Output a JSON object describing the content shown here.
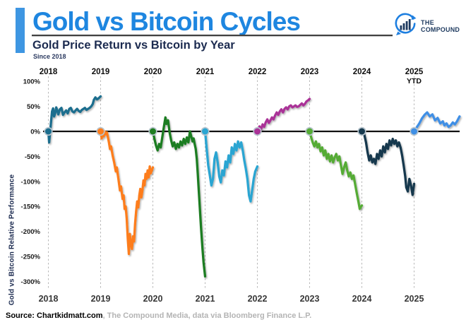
{
  "header": {
    "title": "Gold vs Bitcoin Cycles",
    "subtitle": "Gold Price Return vs Bitcoin by Year",
    "since": "Since 2018",
    "logo": {
      "line1": "THE",
      "line2": "COMPOUND"
    }
  },
  "footer": {
    "source_bold": "Source: Chartkidmatt.com",
    "source_rest": ", The Compound Media, data via Bloomberg Finance L.P."
  },
  "palette": {
    "title_blue": "#1e86e0",
    "accent_bar_blue": "#3e96e2",
    "navy_text": "#1c2b50",
    "zero_line": "#111111",
    "gridline": "#b8b8b8",
    "dot_ring": "#b9c6cf",
    "footer_gray": "#b4b4b4"
  },
  "chart_data": {
    "type": "line",
    "title": "Gold Price Return vs Bitcoin by Year",
    "subtitle": "Since 2018",
    "ylabel": "Gold vs Bitcoin Relative Performance",
    "ylim": [
      -300,
      100
    ],
    "yticks": [
      100,
      50,
      0,
      -50,
      -100,
      -150,
      -200,
      -250,
      -300
    ],
    "ytick_labels": [
      "100%",
      "50%",
      "0%",
      "-50%",
      "-100%",
      "-150%",
      "-200%",
      "-250%",
      "-300%"
    ],
    "x_bottom_labels": [
      "2018",
      "2019",
      "2020",
      "2021",
      "2022",
      "2023",
      "2024",
      "2025"
    ],
    "x_top_labels": [
      {
        "label": "2018",
        "sub": ""
      },
      {
        "label": "2019",
        "sub": ""
      },
      {
        "label": "2020",
        "sub": ""
      },
      {
        "label": "2021",
        "sub": ""
      },
      {
        "label": "2022",
        "sub": ""
      },
      {
        "label": "2023",
        "sub": ""
      },
      {
        "label": "2024",
        "sub": ""
      },
      {
        "label": "2025",
        "sub": "YTD"
      }
    ],
    "grid": "vertical-dashed",
    "legend": "none",
    "series": [
      {
        "name": "2018",
        "color": "#1c6e8e",
        "points": [
          [
            0,
            0
          ],
          [
            0.015,
            -22
          ],
          [
            0.03,
            -5
          ],
          [
            0.05,
            18
          ],
          [
            0.07,
            40
          ],
          [
            0.09,
            46
          ],
          [
            0.11,
            30
          ],
          [
            0.13,
            36
          ],
          [
            0.15,
            48
          ],
          [
            0.17,
            42
          ],
          [
            0.19,
            34
          ],
          [
            0.22,
            44
          ],
          [
            0.25,
            47
          ],
          [
            0.28,
            33
          ],
          [
            0.31,
            38
          ],
          [
            0.34,
            42
          ],
          [
            0.37,
            36
          ],
          [
            0.4,
            45
          ],
          [
            0.43,
            47
          ],
          [
            0.46,
            40
          ],
          [
            0.49,
            38
          ],
          [
            0.52,
            42
          ],
          [
            0.55,
            45
          ],
          [
            0.58,
            41
          ],
          [
            0.61,
            39
          ],
          [
            0.64,
            43
          ],
          [
            0.67,
            45
          ],
          [
            0.7,
            47
          ],
          [
            0.73,
            43
          ],
          [
            0.76,
            45
          ],
          [
            0.79,
            47
          ],
          [
            0.82,
            50
          ],
          [
            0.85,
            55
          ],
          [
            0.87,
            63
          ],
          [
            0.9,
            68
          ],
          [
            0.93,
            64
          ],
          [
            0.96,
            66
          ],
          [
            1,
            70
          ]
        ]
      },
      {
        "name": "2019",
        "color": "#fd7d1d",
        "points": [
          [
            0,
            0
          ],
          [
            0.02,
            -14
          ],
          [
            0.04,
            -4
          ],
          [
            0.06,
            -10
          ],
          [
            0.08,
            0
          ],
          [
            0.1,
            -6
          ],
          [
            0.12,
            -2
          ],
          [
            0.14,
            -12
          ],
          [
            0.16,
            -22
          ],
          [
            0.18,
            -35
          ],
          [
            0.2,
            -30
          ],
          [
            0.23,
            -48
          ],
          [
            0.26,
            -62
          ],
          [
            0.29,
            -80
          ],
          [
            0.31,
            -72
          ],
          [
            0.34,
            -95
          ],
          [
            0.37,
            -118
          ],
          [
            0.39,
            -110
          ],
          [
            0.42,
            -135
          ],
          [
            0.44,
            -128
          ],
          [
            0.46,
            -155
          ],
          [
            0.48,
            -150
          ],
          [
            0.5,
            -175
          ],
          [
            0.52,
            -215
          ],
          [
            0.54,
            -245
          ],
          [
            0.56,
            -205
          ],
          [
            0.58,
            -225
          ],
          [
            0.6,
            -235
          ],
          [
            0.62,
            -210
          ],
          [
            0.64,
            -220
          ],
          [
            0.66,
            -185
          ],
          [
            0.68,
            -160
          ],
          [
            0.7,
            -140
          ],
          [
            0.72,
            -152
          ],
          [
            0.74,
            -128
          ],
          [
            0.76,
            -115
          ],
          [
            0.78,
            -132
          ],
          [
            0.8,
            -118
          ],
          [
            0.82,
            -98
          ],
          [
            0.84,
            -108
          ],
          [
            0.86,
            -85
          ],
          [
            0.88,
            -95
          ],
          [
            0.9,
            -78
          ],
          [
            0.92,
            -92
          ],
          [
            0.94,
            -70
          ],
          [
            0.96,
            -84
          ],
          [
            0.98,
            -78
          ],
          [
            1,
            -72
          ]
        ]
      },
      {
        "name": "2020",
        "color": "#1f7d21",
        "points": [
          [
            0,
            0
          ],
          [
            0.03,
            -15
          ],
          [
            0.06,
            -28
          ],
          [
            0.09,
            -38
          ],
          [
            0.12,
            -25
          ],
          [
            0.15,
            -32
          ],
          [
            0.18,
            -12
          ],
          [
            0.21,
            8
          ],
          [
            0.24,
            28
          ],
          [
            0.26,
            15
          ],
          [
            0.29,
            22
          ],
          [
            0.32,
            -2
          ],
          [
            0.35,
            -18
          ],
          [
            0.38,
            -30
          ],
          [
            0.41,
            -22
          ],
          [
            0.44,
            -35
          ],
          [
            0.47,
            -25
          ],
          [
            0.5,
            -32
          ],
          [
            0.53,
            -20
          ],
          [
            0.56,
            -28
          ],
          [
            0.59,
            -15
          ],
          [
            0.62,
            -25
          ],
          [
            0.65,
            -12
          ],
          [
            0.68,
            -22
          ],
          [
            0.71,
            0
          ],
          [
            0.73,
            -8
          ],
          [
            0.76,
            -20
          ],
          [
            0.78,
            -14
          ],
          [
            0.8,
            -25
          ],
          [
            0.82,
            -35
          ],
          [
            0.84,
            -55
          ],
          [
            0.86,
            -85
          ],
          [
            0.88,
            -120
          ],
          [
            0.9,
            -155
          ],
          [
            0.92,
            -190
          ],
          [
            0.95,
            -235
          ],
          [
            0.97,
            -262
          ],
          [
            1,
            -290
          ]
        ]
      },
      {
        "name": "2021",
        "color": "#2aa5d2",
        "points": [
          [
            0,
            0
          ],
          [
            0.03,
            -35
          ],
          [
            0.06,
            -68
          ],
          [
            0.09,
            -88
          ],
          [
            0.12,
            -108
          ],
          [
            0.15,
            -95
          ],
          [
            0.18,
            -55
          ],
          [
            0.21,
            -42
          ],
          [
            0.24,
            -62
          ],
          [
            0.27,
            -90
          ],
          [
            0.3,
            -102
          ],
          [
            0.33,
            -78
          ],
          [
            0.36,
            -88
          ],
          [
            0.39,
            -60
          ],
          [
            0.42,
            -72
          ],
          [
            0.45,
            -48
          ],
          [
            0.48,
            -62
          ],
          [
            0.51,
            -32
          ],
          [
            0.54,
            -45
          ],
          [
            0.57,
            -25
          ],
          [
            0.6,
            -38
          ],
          [
            0.63,
            -20
          ],
          [
            0.66,
            -32
          ],
          [
            0.69,
            -22
          ],
          [
            0.72,
            -38
          ],
          [
            0.75,
            -58
          ],
          [
            0.78,
            -75
          ],
          [
            0.81,
            -95
          ],
          [
            0.84,
            -128
          ],
          [
            0.87,
            -140
          ],
          [
            0.9,
            -118
          ],
          [
            0.93,
            -95
          ],
          [
            0.96,
            -80
          ],
          [
            1,
            -70
          ]
        ]
      },
      {
        "name": "2022",
        "color": "#aa3397",
        "points": [
          [
            0,
            0
          ],
          [
            0.04,
            10
          ],
          [
            0.07,
            4
          ],
          [
            0.1,
            14
          ],
          [
            0.13,
            9
          ],
          [
            0.16,
            18
          ],
          [
            0.19,
            24
          ],
          [
            0.22,
            17
          ],
          [
            0.25,
            22
          ],
          [
            0.28,
            28
          ],
          [
            0.31,
            24
          ],
          [
            0.34,
            32
          ],
          [
            0.37,
            38
          ],
          [
            0.4,
            33
          ],
          [
            0.43,
            40
          ],
          [
            0.46,
            44
          ],
          [
            0.49,
            38
          ],
          [
            0.52,
            45
          ],
          [
            0.55,
            48
          ],
          [
            0.58,
            44
          ],
          [
            0.61,
            50
          ],
          [
            0.64,
            52
          ],
          [
            0.67,
            48
          ],
          [
            0.7,
            50
          ],
          [
            0.73,
            52
          ],
          [
            0.76,
            49
          ],
          [
            0.79,
            50
          ],
          [
            0.82,
            53
          ],
          [
            0.85,
            56
          ],
          [
            0.88,
            52
          ],
          [
            0.91,
            55
          ],
          [
            0.94,
            60
          ],
          [
            0.97,
            62
          ],
          [
            1,
            65
          ]
        ]
      },
      {
        "name": "2023",
        "color": "#55ab35",
        "points": [
          [
            0,
            0
          ],
          [
            0.03,
            -12
          ],
          [
            0.06,
            -22
          ],
          [
            0.09,
            -30
          ],
          [
            0.12,
            -20
          ],
          [
            0.15,
            -32
          ],
          [
            0.18,
            -25
          ],
          [
            0.21,
            -40
          ],
          [
            0.24,
            -32
          ],
          [
            0.27,
            -48
          ],
          [
            0.3,
            -38
          ],
          [
            0.33,
            -55
          ],
          [
            0.36,
            -45
          ],
          [
            0.39,
            -60
          ],
          [
            0.42,
            -48
          ],
          [
            0.45,
            -62
          ],
          [
            0.48,
            -52
          ],
          [
            0.51,
            -45
          ],
          [
            0.54,
            -58
          ],
          [
            0.57,
            -50
          ],
          [
            0.6,
            -68
          ],
          [
            0.63,
            -85
          ],
          [
            0.66,
            -72
          ],
          [
            0.69,
            -62
          ],
          [
            0.72,
            -78
          ],
          [
            0.75,
            -90
          ],
          [
            0.78,
            -82
          ],
          [
            0.81,
            -95
          ],
          [
            0.84,
            -88
          ],
          [
            0.87,
            -105
          ],
          [
            0.9,
            -122
          ],
          [
            0.93,
            -138
          ],
          [
            0.96,
            -155
          ],
          [
            1,
            -148
          ]
        ]
      },
      {
        "name": "2024",
        "color": "#16394e",
        "points": [
          [
            0,
            0
          ],
          [
            0.02,
            6
          ],
          [
            0.05,
            -8
          ],
          [
            0.08,
            -22
          ],
          [
            0.11,
            -42
          ],
          [
            0.14,
            -58
          ],
          [
            0.17,
            -48
          ],
          [
            0.2,
            -62
          ],
          [
            0.23,
            -55
          ],
          [
            0.26,
            -65
          ],
          [
            0.29,
            -45
          ],
          [
            0.32,
            -55
          ],
          [
            0.35,
            -38
          ],
          [
            0.38,
            -50
          ],
          [
            0.41,
            -30
          ],
          [
            0.44,
            -42
          ],
          [
            0.47,
            -25
          ],
          [
            0.5,
            -35
          ],
          [
            0.53,
            -18
          ],
          [
            0.56,
            -28
          ],
          [
            0.59,
            -15
          ],
          [
            0.62,
            -25
          ],
          [
            0.65,
            -18
          ],
          [
            0.68,
            -30
          ],
          [
            0.71,
            -22
          ],
          [
            0.74,
            -32
          ],
          [
            0.77,
            -48
          ],
          [
            0.8,
            -68
          ],
          [
            0.83,
            -90
          ],
          [
            0.85,
            -112
          ],
          [
            0.88,
            -120
          ],
          [
            0.91,
            -95
          ],
          [
            0.94,
            -108
          ],
          [
            0.97,
            -127
          ],
          [
            1,
            -105
          ]
        ]
      },
      {
        "name": "2025 YTD",
        "color": "#3f8fe5",
        "points": [
          [
            0,
            0
          ],
          [
            0.05,
            8
          ],
          [
            0.1,
            16
          ],
          [
            0.15,
            26
          ],
          [
            0.2,
            33
          ],
          [
            0.25,
            38
          ],
          [
            0.3,
            30
          ],
          [
            0.35,
            34
          ],
          [
            0.4,
            22
          ],
          [
            0.45,
            27
          ],
          [
            0.5,
            16
          ],
          [
            0.55,
            20
          ],
          [
            0.58,
            12
          ],
          [
            0.62,
            16
          ],
          [
            0.66,
            9
          ],
          [
            0.7,
            12
          ],
          [
            0.74,
            18
          ],
          [
            0.78,
            14
          ],
          [
            0.82,
            20
          ],
          [
            0.85,
            26
          ],
          [
            0.87,
            30
          ]
        ]
      }
    ]
  }
}
